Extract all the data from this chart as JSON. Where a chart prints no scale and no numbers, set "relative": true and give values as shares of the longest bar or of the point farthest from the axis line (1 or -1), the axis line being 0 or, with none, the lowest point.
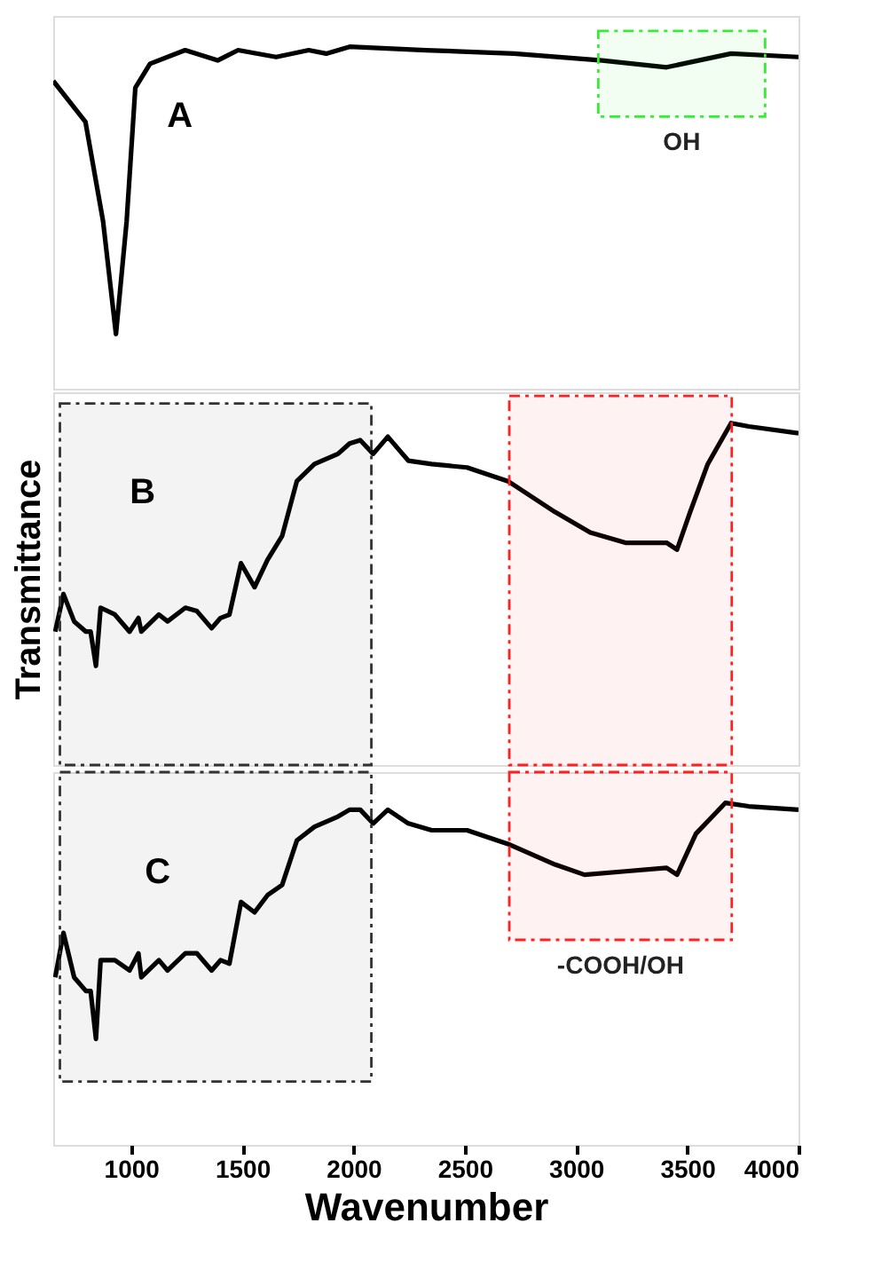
{
  "chart_data": [
    {
      "type": "line",
      "relative": true,
      "xlim": [
        650,
        4000
      ],
      "tick_labels": false,
      "annotations": [
        "A"
      ],
      "x": [
        650,
        795,
        874,
        932,
        980,
        1019,
        1085,
        1243,
        1389,
        1481,
        1652,
        1798,
        1877,
        1982,
        2325,
        2721,
        3117,
        3407,
        3697,
        4000
      ],
      "series": [
        {
          "color": "#000000",
          "values": [
            0.9,
            0.78,
            0.49,
            0.16,
            0.49,
            0.88,
            0.95,
            0.99,
            0.96,
            0.99,
            0.97,
            0.99,
            0.98,
            1.0,
            0.99,
            0.98,
            0.96,
            0.94,
            0.98,
            0.97
          ]
        }
      ],
      "bands": [
        {
          "axis": "x",
          "from": 3100,
          "to": 3850,
          "label": "OH",
          "color": "#33ee33"
        }
      ]
    },
    {
      "type": "line",
      "relative": true,
      "xlim": [
        650,
        4000
      ],
      "tick_labels": false,
      "ylabel": "Transmittance",
      "annotations": [
        "B"
      ],
      "x": [
        659,
        696,
        744,
        797,
        818,
        842,
        863,
        927,
        993,
        1033,
        1046,
        1125,
        1164,
        1244,
        1296,
        1362,
        1402,
        1442,
        1494,
        1555,
        1613,
        1679,
        1745,
        1824,
        1930,
        1982,
        2030,
        2088,
        2154,
        2246,
        2351,
        2510,
        2694,
        2905,
        3064,
        3222,
        3407,
        3454,
        3513,
        3592,
        3697,
        3776,
        4000
      ],
      "series": [
        {
          "color": "#000000",
          "values": [
            0.39,
            0.5,
            0.42,
            0.39,
            0.39,
            0.29,
            0.46,
            0.44,
            0.39,
            0.43,
            0.39,
            0.44,
            0.42,
            0.46,
            0.45,
            0.4,
            0.43,
            0.44,
            0.59,
            0.52,
            0.6,
            0.67,
            0.83,
            0.88,
            0.91,
            0.94,
            0.95,
            0.91,
            0.96,
            0.89,
            0.88,
            0.87,
            0.83,
            0.74,
            0.68,
            0.65,
            0.65,
            0.63,
            0.74,
            0.88,
            1.0,
            0.99,
            0.97
          ]
        }
      ],
      "bands": [
        {
          "axis": "x",
          "from": 680,
          "to": 2080,
          "color": "#333333"
        },
        {
          "axis": "x",
          "from": 2700,
          "to": 3700,
          "color": "#ff2020"
        }
      ]
    },
    {
      "type": "line",
      "relative": true,
      "xlim": [
        650,
        4000
      ],
      "xticks": [
        1000,
        1500,
        2000,
        2500,
        3000,
        3500,
        4000
      ],
      "tick_labels": "x",
      "xlabel": "Wavenumber",
      "annotations": [
        "C"
      ],
      "x": [
        659,
        696,
        744,
        797,
        818,
        842,
        863,
        927,
        993,
        1033,
        1046,
        1125,
        1164,
        1244,
        1296,
        1362,
        1402,
        1442,
        1494,
        1555,
        1613,
        1679,
        1745,
        1824,
        1930,
        1982,
        2030,
        2088,
        2154,
        2246,
        2351,
        2510,
        2694,
        2905,
        3038,
        3222,
        3407,
        3454,
        3539,
        3671,
        3776,
        4000
      ],
      "series": [
        {
          "color": "#000000",
          "values": [
            0.49,
            0.62,
            0.49,
            0.45,
            0.45,
            0.31,
            0.54,
            0.54,
            0.51,
            0.56,
            0.49,
            0.54,
            0.51,
            0.56,
            0.56,
            0.51,
            0.54,
            0.53,
            0.71,
            0.68,
            0.73,
            0.76,
            0.89,
            0.93,
            0.96,
            0.98,
            0.98,
            0.94,
            0.98,
            0.94,
            0.92,
            0.92,
            0.88,
            0.82,
            0.79,
            0.8,
            0.81,
            0.79,
            0.91,
            1.0,
            0.99,
            0.98
          ]
        }
      ],
      "bands": [
        {
          "axis": "x",
          "from": 680,
          "to": 2080,
          "color": "#333333"
        },
        {
          "axis": "x",
          "from": 2700,
          "to": 3700,
          "label": "-COOH/OH",
          "color": "#ff2020"
        }
      ]
    }
  ]
}
